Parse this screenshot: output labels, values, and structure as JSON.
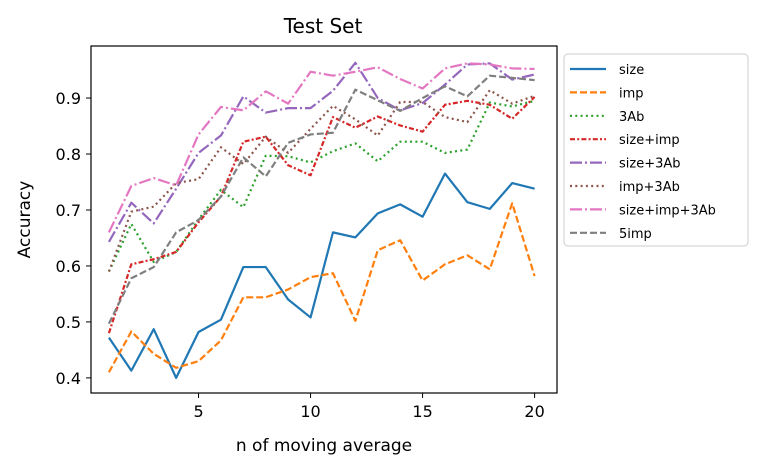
{
  "chart_data": {
    "type": "line",
    "title": "Test Set",
    "xlabel": "n of moving average",
    "ylabel": "Accuracy",
    "xlim": [
      0.2,
      21.0
    ],
    "ylim": [
      0.373,
      0.993
    ],
    "xticks": [
      5,
      10,
      15,
      20
    ],
    "yticks": [
      0.4,
      0.5,
      0.6,
      0.7,
      0.8,
      0.9
    ],
    "xtick_labels": [
      "5",
      "10",
      "15",
      "20"
    ],
    "ytick_labels": [
      "0.4",
      "0.5",
      "0.6",
      "0.7",
      "0.8",
      "0.9"
    ],
    "grid": false,
    "legend_position": "outside right, top",
    "x": [
      1,
      2,
      3,
      4,
      5,
      6,
      7,
      8,
      9,
      10,
      11,
      12,
      13,
      14,
      15,
      16,
      17,
      18,
      19,
      20
    ],
    "series": [
      {
        "name": "size",
        "color": "#1f77b4",
        "dash": "solid",
        "values": [
          0.472,
          0.413,
          0.487,
          0.4,
          0.482,
          0.504,
          0.598,
          0.598,
          0.54,
          0.508,
          0.66,
          0.651,
          0.694,
          0.71,
          0.688,
          0.765,
          0.714,
          0.702,
          0.748,
          0.738
        ]
      },
      {
        "name": "imp",
        "color": "#ff7f0e",
        "dash": "dashed",
        "values": [
          0.41,
          0.483,
          0.443,
          0.418,
          0.43,
          0.467,
          0.544,
          0.544,
          0.558,
          0.58,
          0.587,
          0.502,
          0.628,
          0.646,
          0.574,
          0.603,
          0.619,
          0.594,
          0.712,
          0.582
        ]
      },
      {
        "name": "3Ab",
        "color": "#2ca02c",
        "dash": "dotted",
        "values": [
          0.59,
          0.675,
          0.607,
          0.625,
          0.683,
          0.736,
          0.705,
          0.797,
          0.796,
          0.785,
          0.805,
          0.819,
          0.787,
          0.822,
          0.822,
          0.802,
          0.808,
          0.892,
          0.885,
          0.895
        ]
      },
      {
        "name": "size+imp",
        "color": "#d62728",
        "dash": "dashdot-dense",
        "values": [
          0.48,
          0.603,
          0.612,
          0.625,
          0.678,
          0.724,
          0.822,
          0.831,
          0.78,
          0.762,
          0.866,
          0.847,
          0.867,
          0.851,
          0.84,
          0.888,
          0.895,
          0.888,
          0.863,
          0.902
        ]
      },
      {
        "name": "size+3Ab",
        "color": "#9467bd",
        "dash": "dashdot",
        "values": [
          0.643,
          0.713,
          0.676,
          0.738,
          0.802,
          0.833,
          0.903,
          0.874,
          0.882,
          0.882,
          0.913,
          0.963,
          0.9,
          0.878,
          0.891,
          0.924,
          0.96,
          0.962,
          0.933,
          0.942
        ]
      },
      {
        "name": "imp+3Ab",
        "color": "#8c564b",
        "dash": "dotted",
        "values": [
          0.59,
          0.697,
          0.706,
          0.748,
          0.755,
          0.812,
          0.782,
          0.831,
          0.802,
          0.845,
          0.886,
          0.862,
          0.833,
          0.893,
          0.893,
          0.866,
          0.857,
          0.914,
          0.89,
          0.904
        ]
      },
      {
        "name": "size+imp+3Ab",
        "color": "#e377c2",
        "dash": "dashdot",
        "values": [
          0.66,
          0.743,
          0.757,
          0.744,
          0.835,
          0.884,
          0.878,
          0.912,
          0.89,
          0.947,
          0.94,
          0.947,
          0.955,
          0.934,
          0.917,
          0.953,
          0.962,
          0.96,
          0.953,
          0.952
        ]
      },
      {
        "name": "5imp",
        "color": "#7f7f7f",
        "dash": "dashed",
        "values": [
          0.497,
          0.578,
          0.598,
          0.66,
          0.682,
          0.724,
          0.794,
          0.76,
          0.82,
          0.835,
          0.838,
          0.915,
          0.896,
          0.877,
          0.9,
          0.921,
          0.903,
          0.94,
          0.936,
          0.932
        ]
      }
    ]
  }
}
